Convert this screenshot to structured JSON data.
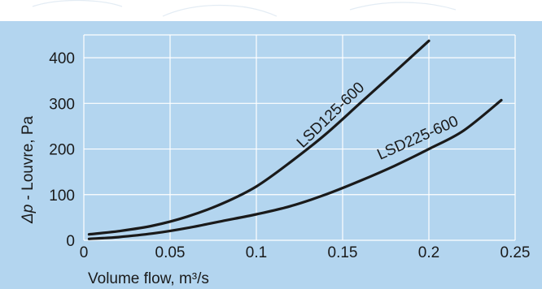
{
  "chart_data": {
    "type": "line",
    "xlabel": "Volume flow, m³/s",
    "ylabel_prefix": "Δp",
    "ylabel_rest": " - Louvre, Pa",
    "xlim": [
      0,
      0.25
    ],
    "ylim": [
      0,
      450
    ],
    "x_ticks": [
      "0",
      "0.05",
      "0.1",
      "0.15",
      "0.2",
      "0.25"
    ],
    "x_tick_values": [
      0,
      0.05,
      0.1,
      0.15,
      0.2,
      0.25
    ],
    "y_ticks": [
      "0",
      "100",
      "200",
      "300",
      "400"
    ],
    "y_tick_values": [
      0,
      100,
      200,
      300,
      400
    ],
    "grid": true,
    "series": [
      {
        "name": "LSD125-600",
        "x": [
          0.003,
          0.02,
          0.04,
          0.06,
          0.08,
          0.1,
          0.12,
          0.14,
          0.16,
          0.18,
          0.2
        ],
        "y": [
          13,
          20,
          32,
          52,
          80,
          118,
          172,
          232,
          300,
          368,
          437
        ]
      },
      {
        "name": "LSD225-600",
        "x": [
          0.003,
          0.02,
          0.04,
          0.06,
          0.08,
          0.1,
          0.12,
          0.14,
          0.16,
          0.18,
          0.2,
          0.22,
          0.242
        ],
        "y": [
          3,
          7,
          15,
          27,
          42,
          57,
          75,
          100,
          130,
          163,
          200,
          240,
          307
        ]
      }
    ]
  }
}
